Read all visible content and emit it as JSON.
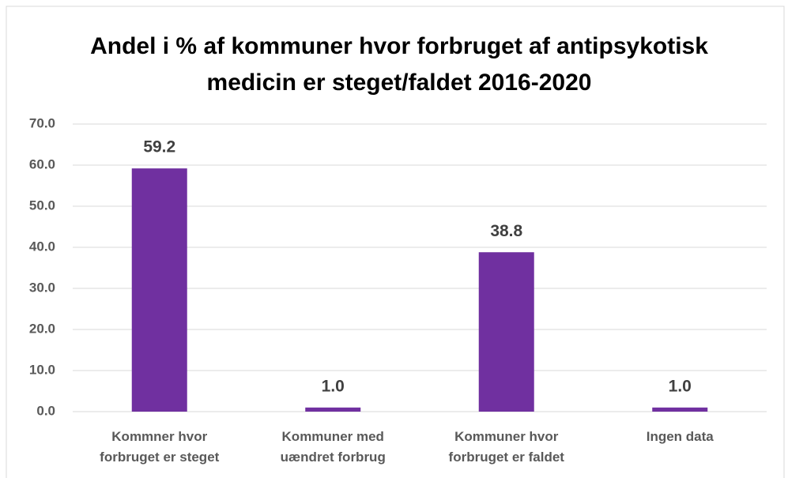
{
  "chart_data": {
    "type": "bar",
    "title": "Andel i % af kommuner hvor forbruget af antipsykotisk medicin er steget/faldet 2016-2020",
    "categories": [
      "Kommner hvor forbruget er steget",
      "Kommuner med uændret forbrug",
      "Kommuner hvor forbruget er faldet",
      "Ingen data"
    ],
    "values": [
      59.2,
      1.0,
      38.8,
      1.0
    ],
    "value_labels": [
      "59.2",
      "1.0",
      "38.8",
      "1.0"
    ],
    "color": "#7030a0",
    "ylim": [
      0,
      70
    ],
    "yticks": [
      {
        "value": 0,
        "label": "0.0"
      },
      {
        "value": 10,
        "label": "10.0"
      },
      {
        "value": 20,
        "label": "20.0"
      },
      {
        "value": 30,
        "label": "30.0"
      },
      {
        "value": 40,
        "label": "40.0"
      },
      {
        "value": 50,
        "label": "50.0"
      },
      {
        "value": 60,
        "label": "60.0"
      },
      {
        "value": 70,
        "label": "70.0"
      }
    ],
    "grid": true
  }
}
